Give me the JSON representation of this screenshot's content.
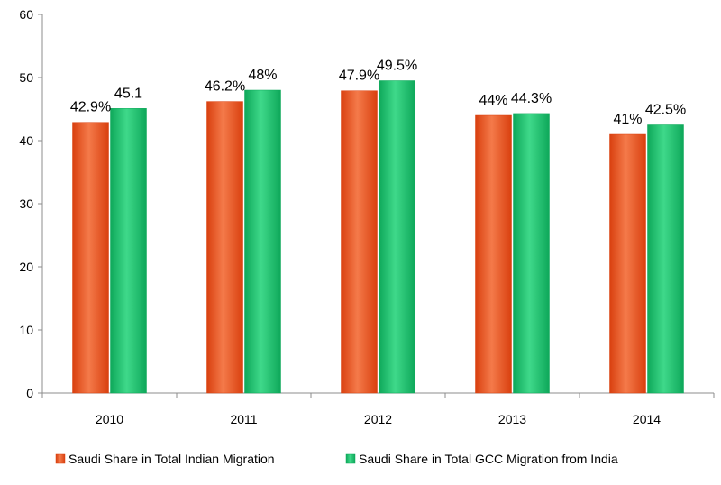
{
  "chart_data": {
    "type": "bar",
    "categories": [
      "2010",
      "2011",
      "2012",
      "2013",
      "2014"
    ],
    "series": [
      {
        "name": "Saudi Share in Total Indian Migration",
        "values": [
          42.9,
          46.2,
          47.9,
          44,
          41
        ],
        "labels": [
          "42.9%",
          "46.2%",
          "47.9%",
          "44%",
          "41%"
        ],
        "color": "#d9400f",
        "color_light": "#f47a4a"
      },
      {
        "name": "Saudi Share in Total GCC Migration from India",
        "values": [
          45.1,
          48,
          49.5,
          44.3,
          42.5
        ],
        "labels": [
          "45.1",
          "48%",
          "49.5%",
          "44.3%",
          "42.5%"
        ],
        "color": "#0ea85a",
        "color_light": "#3fd98a"
      }
    ],
    "yticks": [
      "0",
      "10",
      "20",
      "30",
      "40",
      "50",
      "60"
    ],
    "ylim": [
      0,
      60
    ],
    "legend_position": "bottom",
    "grid": false
  }
}
